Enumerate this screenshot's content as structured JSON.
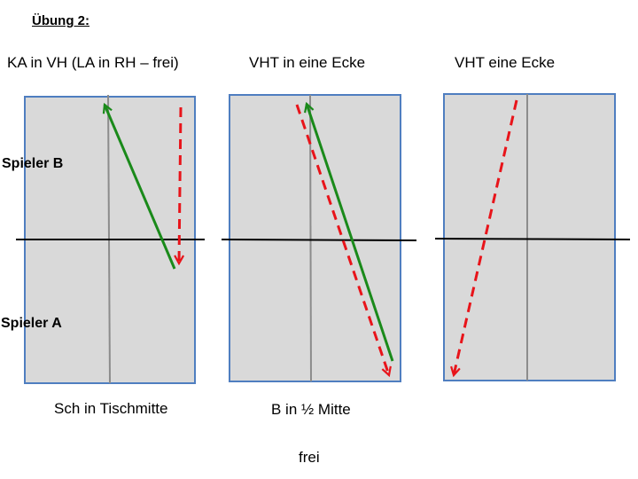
{
  "title": "Übung 2:",
  "panels": [
    {
      "heading": "KA in VH (LA in RH – frei)",
      "caption": "Sch in Tischmitte",
      "arrows": [
        {
          "style": "solid",
          "color": "#1a8a1a"
        },
        {
          "style": "dashed",
          "color": "#e8141a"
        }
      ]
    },
    {
      "heading": "VHT in eine Ecke",
      "caption": "B in ½ Mitte",
      "arrows": [
        {
          "style": "solid",
          "color": "#1a8a1a"
        },
        {
          "style": "dashed",
          "color": "#e8141a"
        }
      ]
    },
    {
      "heading": "VHT eine Ecke",
      "caption": "",
      "arrows": [
        {
          "style": "dashed",
          "color": "#e8141a"
        }
      ]
    }
  ],
  "row_labels": {
    "top": "Spieler B",
    "bottom": "Spieler A"
  },
  "footer": "frei",
  "colors": {
    "table_fill": "#d9d9d9",
    "table_border": "#4f7ec0",
    "center_line": "#8c8c8c",
    "net": "#000000",
    "solid_arrow": "#1a8a1a",
    "dashed_arrow": "#e8141a"
  }
}
